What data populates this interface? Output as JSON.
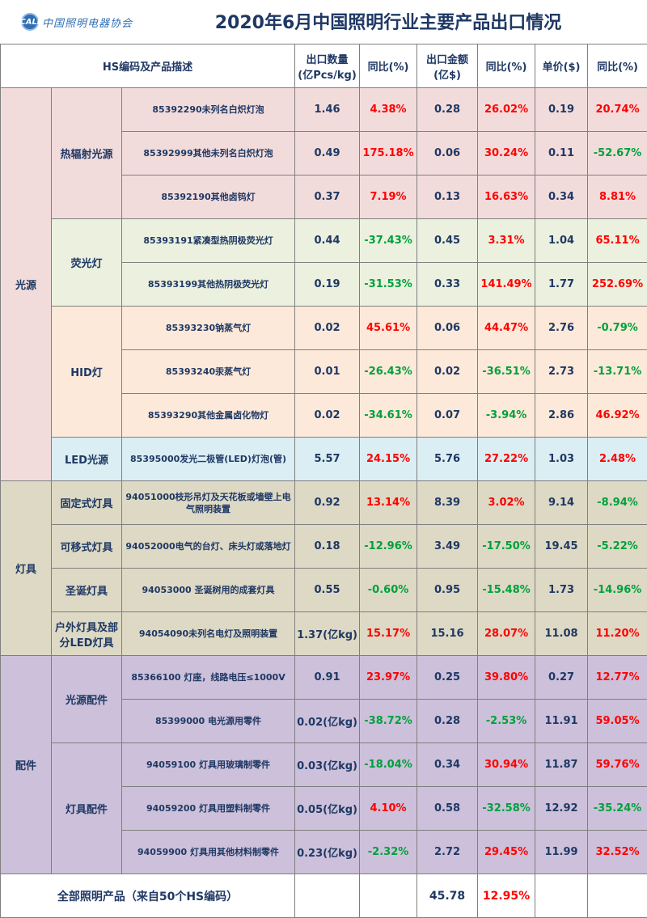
{
  "header": {
    "logo_text": "中国照明电器协会",
    "logo_mark": "CALI",
    "title": "2020年6月中国照明行业主要产品出口情况"
  },
  "columns": {
    "desc": "HS编码及产品描述",
    "qty": "出口数量\n(亿Pcs/kg)",
    "qty_yoy": "同比(%)",
    "amt": "出口金额\n(亿$)",
    "amt_yoy": "同比(%)",
    "price": "单价($)",
    "price_yoy": "同比(%)"
  },
  "groups": {
    "light_source": "光源",
    "lamps": "灯具",
    "accessories": "配件"
  },
  "subgroups": {
    "thermal": "热辐射光源",
    "fluo": "荧光灯",
    "hid": "HID灯",
    "led": "LED光源",
    "fixed": "固定式灯具",
    "portable": "可移式灯具",
    "xmas": "圣诞灯具",
    "outdoor": "户外灯具及部分LED灯具",
    "src_acc": "光源配件",
    "lamp_acc": "灯具配件"
  },
  "rows": [
    {
      "desc": "85392290未列名白炽灯泡",
      "qty": "1.46",
      "qty_yoy": "4.38%",
      "amt": "0.28",
      "amt_yoy": "26.02%",
      "price": "0.19",
      "price_yoy": "20.74%"
    },
    {
      "desc": "85392999其他未列名白炽灯泡",
      "qty": "0.49",
      "qty_yoy": "175.18%",
      "amt": "0.06",
      "amt_yoy": "30.24%",
      "price": "0.11",
      "price_yoy": "-52.67%"
    },
    {
      "desc": "85392190其他卤钨灯",
      "qty": "0.37",
      "qty_yoy": "7.19%",
      "amt": "0.13",
      "amt_yoy": "16.63%",
      "price": "0.34",
      "price_yoy": "8.81%"
    },
    {
      "desc": "85393191紧凑型热阴极荧光灯",
      "qty": "0.44",
      "qty_yoy": "-37.43%",
      "amt": "0.45",
      "amt_yoy": "3.31%",
      "price": "1.04",
      "price_yoy": "65.11%"
    },
    {
      "desc": "85393199其他热阴极荧光灯",
      "qty": "0.19",
      "qty_yoy": "-31.53%",
      "amt": "0.33",
      "amt_yoy": "141.49%",
      "price": "1.77",
      "price_yoy": "252.69%"
    },
    {
      "desc": "85393230钠蒸气灯",
      "qty": "0.02",
      "qty_yoy": "45.61%",
      "amt": "0.06",
      "amt_yoy": "44.47%",
      "price": "2.76",
      "price_yoy": "-0.79%"
    },
    {
      "desc": "85393240汞蒸气灯",
      "qty": "0.01",
      "qty_yoy": "-26.43%",
      "amt": "0.02",
      "amt_yoy": "-36.51%",
      "price": "2.73",
      "price_yoy": "-13.71%"
    },
    {
      "desc": "85393290其他金属卤化物灯",
      "qty": "0.02",
      "qty_yoy": "-34.61%",
      "amt": "0.07",
      "amt_yoy": "-3.94%",
      "price": "2.86",
      "price_yoy": "46.92%"
    },
    {
      "desc": "85395000发光二极管(LED)灯泡(管)",
      "qty": "5.57",
      "qty_yoy": "24.15%",
      "amt": "5.76",
      "amt_yoy": "27.22%",
      "price": "1.03",
      "price_yoy": "2.48%"
    },
    {
      "desc": "94051000枝形吊灯及天花板或墙壁上电气照明装置",
      "qty": "0.92",
      "qty_yoy": "13.14%",
      "amt": "8.39",
      "amt_yoy": "3.02%",
      "price": "9.14",
      "price_yoy": "-8.94%"
    },
    {
      "desc": "94052000电气的台灯、床头灯或落地灯",
      "qty": "0.18",
      "qty_yoy": "-12.96%",
      "amt": "3.49",
      "amt_yoy": "-17.50%",
      "price": "19.45",
      "price_yoy": "-5.22%"
    },
    {
      "desc": "94053000 圣诞树用的成套灯具",
      "qty": "0.55",
      "qty_yoy": "-0.60%",
      "amt": "0.95",
      "amt_yoy": "-15.48%",
      "price": "1.73",
      "price_yoy": "-14.96%"
    },
    {
      "desc": "94054090未列名电灯及照明装置",
      "qty": "1.37(亿kg)",
      "qty_yoy": "15.17%",
      "amt": "15.16",
      "amt_yoy": "28.07%",
      "price": "11.08",
      "price_yoy": "11.20%"
    },
    {
      "desc": "85366100 灯座，线路电压≤1000V",
      "qty": "0.91",
      "qty_yoy": "23.97%",
      "amt": "0.25",
      "amt_yoy": "39.80%",
      "price": "0.27",
      "price_yoy": "12.77%"
    },
    {
      "desc": "85399000 电光源用零件",
      "qty": "0.02(亿kg)",
      "qty_yoy": "-38.72%",
      "amt": "0.28",
      "amt_yoy": "-2.53%",
      "price": "11.91",
      "price_yoy": "59.05%"
    },
    {
      "desc": "94059100 灯具用玻璃制零件",
      "qty": "0.03(亿kg)",
      "qty_yoy": "-18.04%",
      "amt": "0.34",
      "amt_yoy": "30.94%",
      "price": "11.87",
      "price_yoy": "59.76%"
    },
    {
      "desc": "94059200 灯具用塑料制零件",
      "qty": "0.05(亿kg)",
      "qty_yoy": "4.10%",
      "amt": "0.58",
      "amt_yoy": "-32.58%",
      "price": "12.92",
      "price_yoy": "-35.24%"
    },
    {
      "desc": "94059900 灯具用其他材料制零件",
      "qty": "0.23(亿kg)",
      "qty_yoy": "-2.32%",
      "amt": "2.72",
      "amt_yoy": "29.45%",
      "price": "11.99",
      "price_yoy": "32.52%"
    }
  ],
  "total": {
    "label": "全部照明产品（来自50个HS编码）",
    "amt": "45.78",
    "amt_yoy": "12.95%"
  },
  "colors": {
    "up": "#ff0000",
    "down": "#00a03c",
    "light_source_bg": "#f2dcdb",
    "fluo_bg": "#ebf1de",
    "hid_bg": "#fde9d9",
    "led_bg": "#daeef3",
    "lamps_bg": "#ddd9c4",
    "accessories_bg": "#ccc0da"
  }
}
